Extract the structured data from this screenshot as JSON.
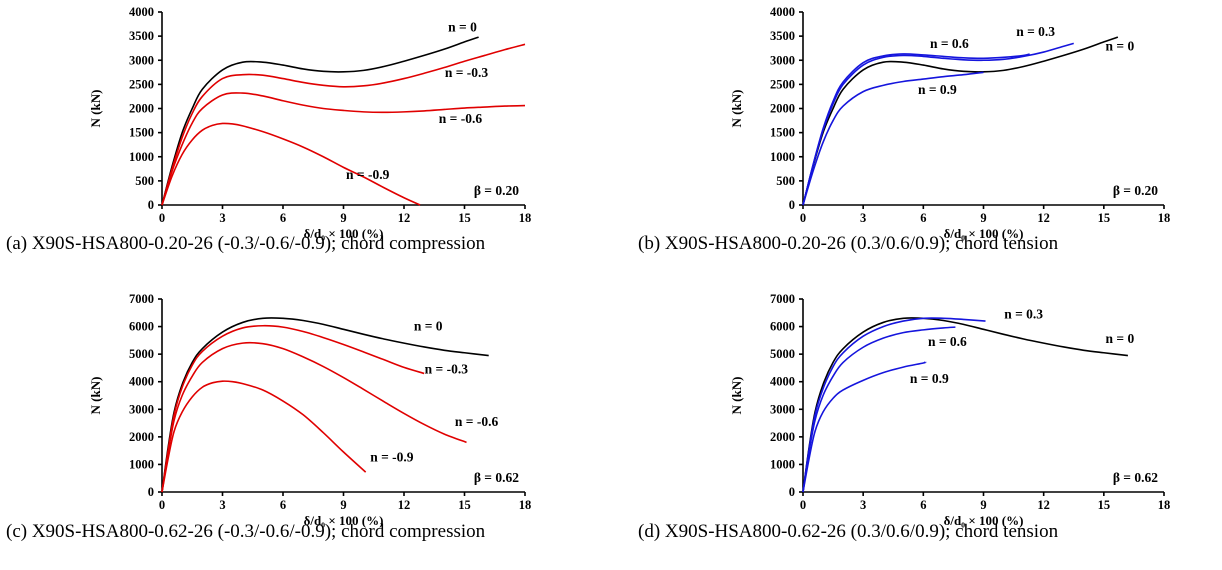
{
  "chart_data": [
    {
      "type": "line",
      "id": "a",
      "caption": "(a) X90S-HSA800-0.20-26 (-0.3/-0.6/-0.9); chord compression",
      "xlabel": "δ/d₀ × 100 (%)",
      "ylabel": "N (kN)",
      "xlim": [
        0,
        18
      ],
      "ylim": [
        0,
        4000
      ],
      "xticks": [
        "0",
        "3",
        "6",
        "9",
        "12",
        "15",
        "18"
      ],
      "yticks": [
        "0",
        "500",
        "1000",
        "1500",
        "2000",
        "2500",
        "3000",
        "3500",
        "4000"
      ],
      "beta_label": "β = 0.20",
      "series": [
        {
          "name": "n = 0",
          "color": "#000000",
          "x": [
            0,
            0.5,
            1,
            1.5,
            2,
            3,
            4,
            5,
            6,
            7,
            8,
            9,
            10,
            11,
            12,
            13,
            14,
            15,
            15.7
          ],
          "y": [
            0,
            800,
            1500,
            2000,
            2400,
            2800,
            2960,
            2960,
            2900,
            2820,
            2770,
            2760,
            2790,
            2870,
            2980,
            3100,
            3230,
            3380,
            3480
          ]
        },
        {
          "name": "n = -0.3",
          "color": "#e00000",
          "x": [
            0,
            0.5,
            1,
            1.5,
            2,
            3,
            4,
            5,
            6,
            7,
            8,
            9,
            10,
            11,
            12,
            13,
            14,
            15,
            16,
            17,
            18
          ],
          "y": [
            0,
            750,
            1400,
            1900,
            2250,
            2620,
            2700,
            2690,
            2620,
            2540,
            2480,
            2450,
            2470,
            2530,
            2620,
            2730,
            2850,
            2980,
            3100,
            3220,
            3330
          ]
        },
        {
          "name": "n = -0.6",
          "color": "#e00000",
          "x": [
            0,
            0.5,
            1,
            1.5,
            2,
            3,
            4,
            5,
            6,
            7,
            8,
            9,
            10,
            11,
            12,
            13,
            14,
            15,
            16,
            17,
            18
          ],
          "y": [
            0,
            700,
            1250,
            1700,
            2000,
            2280,
            2320,
            2260,
            2160,
            2070,
            2000,
            1960,
            1930,
            1920,
            1930,
            1950,
            1980,
            2010,
            2030,
            2050,
            2060
          ]
        },
        {
          "name": "n = -0.9",
          "color": "#e00000",
          "x": [
            0,
            0.5,
            1,
            1.5,
            2,
            2.5,
            3,
            3.5,
            4,
            5,
            6,
            7,
            8,
            9,
            10,
            11,
            12,
            12.8
          ],
          "y": [
            0,
            600,
            1050,
            1350,
            1550,
            1650,
            1690,
            1680,
            1640,
            1520,
            1370,
            1200,
            1000,
            780,
            580,
            360,
            150,
            0
          ]
        }
      ],
      "labels": [
        {
          "text": "n = 0",
          "x": 14.9,
          "y": 3600
        },
        {
          "text": "n = -0.3",
          "x": 15.1,
          "y": 2650
        },
        {
          "text": "n = -0.6",
          "x": 14.8,
          "y": 1700
        },
        {
          "text": "n = -0.9",
          "x": 10.2,
          "y": 540
        }
      ]
    },
    {
      "type": "line",
      "id": "b",
      "caption": "(b) X90S-HSA800-0.20-26 (0.3/0.6/0.9); chord tension",
      "xlabel": "δ/d₀ × 100 (%)",
      "ylabel": "N (kN)",
      "xlim": [
        0,
        18
      ],
      "ylim": [
        0,
        4000
      ],
      "xticks": [
        "0",
        "3",
        "6",
        "9",
        "12",
        "15",
        "18"
      ],
      "yticks": [
        "0",
        "500",
        "1000",
        "1500",
        "2000",
        "2500",
        "3000",
        "3500",
        "4000"
      ],
      "beta_label": "β = 0.20",
      "series": [
        {
          "name": "n = 0",
          "color": "#000000",
          "x": [
            0,
            0.5,
            1,
            1.5,
            2,
            3,
            4,
            5,
            6,
            7,
            8,
            9,
            10,
            11,
            12,
            13,
            14,
            15,
            15.7
          ],
          "y": [
            0,
            800,
            1500,
            2000,
            2400,
            2800,
            2960,
            2960,
            2900,
            2820,
            2770,
            2760,
            2790,
            2870,
            2980,
            3100,
            3230,
            3380,
            3480
          ]
        },
        {
          "name": "n = 0.3",
          "color": "#1515dd",
          "x": [
            0,
            0.5,
            1,
            1.5,
            2,
            3,
            4,
            5,
            6,
            7,
            8,
            9,
            10,
            11,
            12,
            13,
            13.5
          ],
          "y": [
            0,
            820,
            1550,
            2100,
            2500,
            2900,
            3060,
            3100,
            3080,
            3040,
            3010,
            3000,
            3020,
            3080,
            3170,
            3290,
            3350
          ]
        },
        {
          "name": "n = 0.6",
          "color": "#1515dd",
          "x": [
            0,
            0.5,
            1,
            1.5,
            2,
            3,
            4,
            5,
            6,
            7,
            8,
            9,
            10,
            11,
            11.3
          ],
          "y": [
            0,
            830,
            1580,
            2150,
            2550,
            2950,
            3090,
            3130,
            3110,
            3080,
            3050,
            3040,
            3060,
            3100,
            3130
          ]
        },
        {
          "name": "n = 0.9",
          "color": "#1515dd",
          "x": [
            0,
            0.5,
            1,
            1.5,
            2,
            3,
            4,
            5,
            6,
            7,
            8,
            9
          ],
          "y": [
            0,
            700,
            1300,
            1750,
            2050,
            2350,
            2480,
            2560,
            2610,
            2660,
            2700,
            2750
          ]
        }
      ],
      "labels": [
        {
          "text": "n = 0.6",
          "x": 7.3,
          "y": 3250
        },
        {
          "text": "n = 0.3",
          "x": 11.6,
          "y": 3500
        },
        {
          "text": "n = 0",
          "x": 15.8,
          "y": 3200
        },
        {
          "text": "n = 0.9",
          "x": 6.7,
          "y": 2300
        }
      ]
    },
    {
      "type": "line",
      "id": "c",
      "caption": "(c) X90S-HSA800-0.62-26 (-0.3/-0.6/-0.9); chord compression",
      "xlabel": "δ/d₀ × 100 (%)",
      "ylabel": "N (kN)",
      "xlim": [
        0,
        18
      ],
      "ylim": [
        0,
        7000
      ],
      "xticks": [
        "0",
        "3",
        "6",
        "9",
        "12",
        "15",
        "18"
      ],
      "yticks": [
        "0",
        "1000",
        "2000",
        "3000",
        "4000",
        "5000",
        "6000",
        "7000"
      ],
      "beta_label": "β = 0.62",
      "series": [
        {
          "name": "n = 0",
          "color": "#000000",
          "x": [
            0,
            0.3,
            0.6,
            1,
            1.5,
            2,
            3,
            4,
            5,
            6,
            7,
            8,
            9,
            10,
            11,
            12,
            13,
            14,
            15,
            16.2
          ],
          "y": [
            0,
            1600,
            2900,
            3900,
            4700,
            5200,
            5800,
            6150,
            6300,
            6300,
            6220,
            6080,
            5900,
            5720,
            5550,
            5400,
            5260,
            5140,
            5050,
            4950
          ]
        },
        {
          "name": "n = -0.3",
          "color": "#e00000",
          "x": [
            0,
            0.3,
            0.6,
            1,
            1.5,
            2,
            3,
            4,
            5,
            6,
            7,
            8,
            9,
            10,
            11,
            12,
            13
          ],
          "y": [
            0,
            1500,
            2800,
            3800,
            4600,
            5100,
            5650,
            5950,
            6030,
            5980,
            5820,
            5600,
            5350,
            5080,
            4800,
            4520,
            4300
          ]
        },
        {
          "name": "n = -0.6",
          "color": "#e00000",
          "x": [
            0,
            0.3,
            0.6,
            1,
            1.5,
            2,
            3,
            4,
            5,
            6,
            7,
            8,
            9,
            10,
            11,
            12,
            13,
            14,
            15.1
          ],
          "y": [
            0,
            1400,
            2600,
            3500,
            4200,
            4700,
            5200,
            5400,
            5380,
            5200,
            4900,
            4550,
            4150,
            3720,
            3280,
            2850,
            2450,
            2100,
            1800
          ]
        },
        {
          "name": "n = -0.9",
          "color": "#e00000",
          "x": [
            0,
            0.3,
            0.6,
            1,
            1.5,
            2,
            2.5,
            3,
            3.5,
            4,
            5,
            6,
            7,
            8,
            9,
            10.1
          ],
          "y": [
            0,
            1200,
            2200,
            2900,
            3450,
            3800,
            3960,
            4020,
            4000,
            3930,
            3700,
            3300,
            2800,
            2150,
            1450,
            720
          ]
        }
      ],
      "labels": [
        {
          "text": "n = 0",
          "x": 13.2,
          "y": 5850
        },
        {
          "text": "n = -0.3",
          "x": 14.1,
          "y": 4300
        },
        {
          "text": "n = -0.6",
          "x": 15.6,
          "y": 2400
        },
        {
          "text": "n = -0.9",
          "x": 11.4,
          "y": 1100
        }
      ]
    },
    {
      "type": "line",
      "id": "d",
      "caption": "(d) X90S-HSA800-0.62-26 (0.3/0.6/0.9); chord tension",
      "xlabel": "δ/d₀ × 100 (%)",
      "ylabel": "N (kN)",
      "xlim": [
        0,
        18
      ],
      "ylim": [
        0,
        7000
      ],
      "xticks": [
        "0",
        "3",
        "6",
        "9",
        "12",
        "15",
        "18"
      ],
      "yticks": [
        "0",
        "1000",
        "2000",
        "3000",
        "4000",
        "5000",
        "6000",
        "7000"
      ],
      "beta_label": "β = 0.62",
      "series": [
        {
          "name": "n = 0",
          "color": "#000000",
          "x": [
            0,
            0.3,
            0.6,
            1,
            1.5,
            2,
            3,
            4,
            5,
            6,
            7,
            8,
            9,
            10,
            11,
            12,
            13,
            14,
            15,
            16.2
          ],
          "y": [
            0,
            1600,
            2900,
            3900,
            4700,
            5200,
            5800,
            6150,
            6300,
            6300,
            6220,
            6080,
            5900,
            5720,
            5550,
            5400,
            5260,
            5140,
            5050,
            4950
          ]
        },
        {
          "name": "n = 0.3",
          "color": "#1515dd",
          "x": [
            0,
            0.3,
            0.6,
            1,
            1.5,
            2,
            3,
            4,
            5,
            6,
            7,
            8,
            9.1
          ],
          "y": [
            0,
            1550,
            2800,
            3750,
            4550,
            5050,
            5650,
            6000,
            6200,
            6300,
            6300,
            6260,
            6200
          ]
        },
        {
          "name": "n = 0.6",
          "color": "#1515dd",
          "x": [
            0,
            0.3,
            0.6,
            1,
            1.5,
            2,
            3,
            4,
            5,
            6,
            7,
            7.6
          ],
          "y": [
            0,
            1450,
            2600,
            3500,
            4200,
            4700,
            5250,
            5580,
            5780,
            5880,
            5950,
            5980
          ]
        },
        {
          "name": "n = 0.9",
          "color": "#1515dd",
          "x": [
            0,
            0.3,
            0.6,
            1,
            1.5,
            2,
            3,
            4,
            5,
            6,
            6.1
          ],
          "y": [
            0,
            1200,
            2200,
            2900,
            3400,
            3700,
            4050,
            4330,
            4530,
            4680,
            4720
          ]
        }
      ],
      "labels": [
        {
          "text": "n = 0.3",
          "x": 11.0,
          "y": 6300
        },
        {
          "text": "n = 0",
          "x": 15.8,
          "y": 5400
        },
        {
          "text": "n = 0.6",
          "x": 7.2,
          "y": 5300
        },
        {
          "text": "n = 0.9",
          "x": 6.3,
          "y": 3950
        }
      ]
    }
  ]
}
